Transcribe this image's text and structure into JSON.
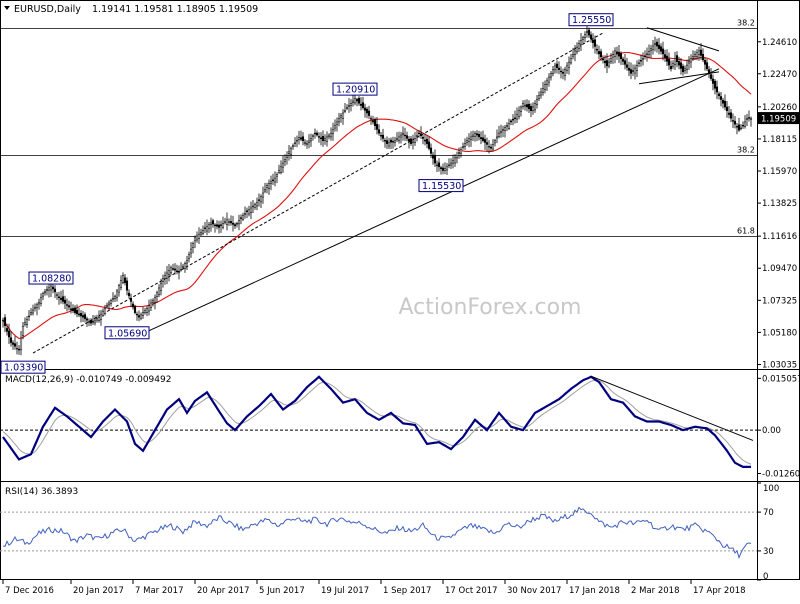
{
  "chart_data": [
    {
      "type": "candlestick",
      "title": "EURUSD,Daily",
      "ohlc": "1.19141 1.19581 1.18905 1.19509",
      "watermark": "ActionForex.com",
      "last_price": "1.19509",
      "y_ticks": [
        "1.24610",
        "1.22470",
        "1.20260",
        "1.18115",
        "1.15970",
        "1.13825",
        "1.11616",
        "1.09470",
        "1.07325",
        "1.05180",
        "1.03035"
      ],
      "x_ticks": [
        "7 Dec 2016",
        "20 Jan 2017",
        "7 Mar 2017",
        "20 Apr 2017",
        "5 Jun 2017",
        "19 Jul 2017",
        "1 Sep 2017",
        "17 Oct 2017",
        "30 Nov 2017",
        "17 Jan 2018",
        "2 Mar 2018",
        "17 Apr 2018"
      ],
      "close_path": [
        [
          0,
          1.06
        ],
        [
          4,
          1.045
        ],
        [
          8,
          1.04
        ],
        [
          10,
          1.056
        ],
        [
          14,
          1.065
        ],
        [
          18,
          1.072
        ],
        [
          20,
          1.078
        ],
        [
          24,
          1.0828
        ],
        [
          28,
          1.075
        ],
        [
          32,
          1.07
        ],
        [
          36,
          1.065
        ],
        [
          40,
          1.062
        ],
        [
          44,
          1.058
        ],
        [
          48,
          1.062
        ],
        [
          52,
          1.07
        ],
        [
          56,
          1.076
        ],
        [
          60,
          1.09
        ],
        [
          62,
          1.08
        ],
        [
          66,
          1.065
        ],
        [
          68,
          1.062
        ],
        [
          72,
          1.068
        ],
        [
          76,
          1.075
        ],
        [
          80,
          1.088
        ],
        [
          84,
          1.095
        ],
        [
          88,
          1.092
        ],
        [
          92,
          1.1
        ],
        [
          96,
          1.115
        ],
        [
          100,
          1.12
        ],
        [
          104,
          1.125
        ],
        [
          108,
          1.122
        ],
        [
          112,
          1.127
        ],
        [
          116,
          1.123
        ],
        [
          120,
          1.13
        ],
        [
          124,
          1.135
        ],
        [
          128,
          1.14
        ],
        [
          132,
          1.15
        ],
        [
          136,
          1.155
        ],
        [
          140,
          1.165
        ],
        [
          144,
          1.175
        ],
        [
          148,
          1.182
        ],
        [
          152,
          1.178
        ],
        [
          156,
          1.185
        ],
        [
          160,
          1.18
        ],
        [
          164,
          1.185
        ],
        [
          168,
          1.195
        ],
        [
          172,
          1.202
        ],
        [
          176,
          1.208
        ],
        [
          180,
          1.202
        ],
        [
          184,
          1.195
        ],
        [
          188,
          1.185
        ],
        [
          192,
          1.178
        ],
        [
          196,
          1.18
        ],
        [
          200,
          1.185
        ],
        [
          204,
          1.178
        ],
        [
          208,
          1.185
        ],
        [
          212,
          1.178
        ],
        [
          216,
          1.165
        ],
        [
          220,
          1.16
        ],
        [
          224,
          1.165
        ],
        [
          228,
          1.172
        ],
        [
          232,
          1.18
        ],
        [
          236,
          1.185
        ],
        [
          240,
          1.18
        ],
        [
          244,
          1.175
        ],
        [
          248,
          1.185
        ],
        [
          252,
          1.19
        ],
        [
          256,
          1.195
        ],
        [
          260,
          1.205
        ],
        [
          264,
          1.2
        ],
        [
          268,
          1.21
        ],
        [
          272,
          1.22
        ],
        [
          276,
          1.23
        ],
        [
          280,
          1.225
        ],
        [
          284,
          1.235
        ],
        [
          288,
          1.245
        ],
        [
          292,
          1.253
        ],
        [
          294,
          1.248
        ],
        [
          298,
          1.238
        ],
        [
          302,
          1.23
        ],
        [
          306,
          1.24
        ],
        [
          310,
          1.233
        ],
        [
          314,
          1.225
        ],
        [
          318,
          1.232
        ],
        [
          322,
          1.238
        ],
        [
          326,
          1.245
        ],
        [
          330,
          1.238
        ],
        [
          334,
          1.228
        ],
        [
          336,
          1.235
        ],
        [
          340,
          1.226
        ],
        [
          344,
          1.235
        ],
        [
          348,
          1.24
        ],
        [
          352,
          1.228
        ],
        [
          356,
          1.215
        ],
        [
          360,
          1.205
        ],
        [
          364,
          1.195
        ],
        [
          368,
          1.187
        ],
        [
          370,
          1.19
        ],
        [
          372,
          1.195
        ]
      ],
      "price_labels": [
        {
          "text": "1.25550",
          "i": 294,
          "price": 1.2555
        },
        {
          "text": "1.20910",
          "i": 176,
          "price": 1.2091
        },
        {
          "text": "1.08280",
          "i": 24,
          "price": 1.0828
        },
        {
          "text": "1.05690",
          "i": 62,
          "price": 1.0569
        },
        {
          "text": "1.15530",
          "i": 219,
          "price": 1.1553
        },
        {
          "text": "1.03390",
          "i": 5,
          "price": 1.0339
        }
      ],
      "fib_levels": [
        {
          "label": "38.2",
          "price": 1.2555
        },
        {
          "label": "38.2",
          "price": 1.1705
        },
        {
          "label": "61.8",
          "price": 1.116
        }
      ],
      "price_range": [
        1.028,
        1.264
      ],
      "bars": 375,
      "trendlines": [
        {
          "type": "support",
          "from": [
            65,
            1.048
          ],
          "to": [
            358,
            1.228
          ]
        },
        {
          "type": "channel",
          "from": [
            15,
            1.038
          ],
          "to": [
            300,
            1.252
          ]
        },
        {
          "type": "wedge-top",
          "from": [
            322,
            1.2555
          ],
          "to": [
            358,
            1.24
          ]
        },
        {
          "type": "wedge-bottom",
          "from": [
            318,
            1.218
          ],
          "to": [
            358,
            1.226
          ]
        }
      ],
      "moving_average_color": "#e01010"
    },
    {
      "type": "line",
      "title": "MACD(12,26,9) -0.010749 -0.009492",
      "y_ticks": [
        "0.015057",
        "0.00",
        "-0.012607"
      ],
      "y_range": [
        -0.0145,
        0.0172
      ],
      "macd_path": [
        [
          0,
          -0.002
        ],
        [
          8,
          -0.0085
        ],
        [
          14,
          -0.007
        ],
        [
          20,
          0.001
        ],
        [
          26,
          0.0065
        ],
        [
          32,
          0.004
        ],
        [
          38,
          0.001
        ],
        [
          44,
          -0.002
        ],
        [
          50,
          0.0025
        ],
        [
          56,
          0.006
        ],
        [
          62,
          0.0025
        ],
        [
          66,
          -0.004
        ],
        [
          70,
          -0.006
        ],
        [
          76,
          0.0
        ],
        [
          82,
          0.006
        ],
        [
          88,
          0.009
        ],
        [
          92,
          0.005
        ],
        [
          96,
          0.0085
        ],
        [
          102,
          0.011
        ],
        [
          108,
          0.0055
        ],
        [
          112,
          0.002
        ],
        [
          116,
          0.0
        ],
        [
          122,
          0.004
        ],
        [
          128,
          0.007
        ],
        [
          134,
          0.0105
        ],
        [
          140,
          0.006
        ],
        [
          146,
          0.0085
        ],
        [
          152,
          0.0125
        ],
        [
          158,
          0.0155
        ],
        [
          164,
          0.012
        ],
        [
          170,
          0.008
        ],
        [
          176,
          0.009
        ],
        [
          182,
          0.005
        ],
        [
          188,
          0.003
        ],
        [
          194,
          0.005
        ],
        [
          200,
          0.002
        ],
        [
          206,
          0.0015
        ],
        [
          212,
          -0.004
        ],
        [
          218,
          -0.0035
        ],
        [
          224,
          -0.0055
        ],
        [
          230,
          -0.002
        ],
        [
          236,
          0.003
        ],
        [
          242,
          0.0
        ],
        [
          248,
          0.005
        ],
        [
          254,
          0.001
        ],
        [
          260,
          0.0
        ],
        [
          266,
          0.005
        ],
        [
          272,
          0.007
        ],
        [
          278,
          0.009
        ],
        [
          284,
          0.012
        ],
        [
          290,
          0.0145
        ],
        [
          294,
          0.0155
        ],
        [
          298,
          0.014
        ],
        [
          304,
          0.009
        ],
        [
          310,
          0.008
        ],
        [
          316,
          0.004
        ],
        [
          322,
          0.0025
        ],
        [
          328,
          0.0025
        ],
        [
          334,
          0.0015
        ],
        [
          340,
          0.0
        ],
        [
          346,
          0.001
        ],
        [
          352,
          0.0005
        ],
        [
          356,
          -0.0015
        ],
        [
          362,
          -0.006
        ],
        [
          366,
          -0.0095
        ],
        [
          370,
          -0.0107
        ],
        [
          372,
          -0.0107
        ]
      ],
      "signal_color": "#a0a0a0",
      "macd_color": "#000080",
      "trendline": {
        "from": [
          294,
          0.0157
        ],
        "to": [
          375,
          -0.003
        ]
      }
    },
    {
      "type": "line",
      "title": "RSI(14) 36.3893",
      "y_ticks": [
        "100",
        "70",
        "30",
        "0"
      ],
      "y_range": [
        0,
        100
      ],
      "levels": [
        70,
        30
      ],
      "rsi_path": [
        [
          0,
          35
        ],
        [
          6,
          42
        ],
        [
          12,
          38
        ],
        [
          18,
          48
        ],
        [
          24,
          52
        ],
        [
          30,
          50
        ],
        [
          36,
          40
        ],
        [
          42,
          46
        ],
        [
          48,
          42
        ],
        [
          54,
          48
        ],
        [
          60,
          52
        ],
        [
          66,
          40
        ],
        [
          72,
          46
        ],
        [
          78,
          52
        ],
        [
          84,
          56
        ],
        [
          90,
          50
        ],
        [
          96,
          60
        ],
        [
          102,
          56
        ],
        [
          108,
          64
        ],
        [
          114,
          58
        ],
        [
          120,
          52
        ],
        [
          126,
          58
        ],
        [
          132,
          62
        ],
        [
          138,
          56
        ],
        [
          144,
          64
        ],
        [
          150,
          60
        ],
        [
          156,
          62
        ],
        [
          162,
          58
        ],
        [
          168,
          64
        ],
        [
          174,
          60
        ],
        [
          180,
          58
        ],
        [
          186,
          52
        ],
        [
          192,
          48
        ],
        [
          198,
          54
        ],
        [
          204,
          50
        ],
        [
          210,
          56
        ],
        [
          216,
          44
        ],
        [
          222,
          42
        ],
        [
          228,
          50
        ],
        [
          234,
          56
        ],
        [
          240,
          52
        ],
        [
          246,
          48
        ],
        [
          252,
          58
        ],
        [
          258,
          54
        ],
        [
          264,
          62
        ],
        [
          270,
          66
        ],
        [
          276,
          60
        ],
        [
          282,
          66
        ],
        [
          288,
          72
        ],
        [
          294,
          70
        ],
        [
          298,
          60
        ],
        [
          304,
          54
        ],
        [
          310,
          60
        ],
        [
          316,
          58
        ],
        [
          322,
          62
        ],
        [
          328,
          50
        ],
        [
          334,
          56
        ],
        [
          340,
          52
        ],
        [
          346,
          56
        ],
        [
          352,
          50
        ],
        [
          356,
          44
        ],
        [
          360,
          36
        ],
        [
          364,
          32
        ],
        [
          368,
          26
        ],
        [
          372,
          36
        ]
      ],
      "line_color": "#4060c0"
    }
  ]
}
